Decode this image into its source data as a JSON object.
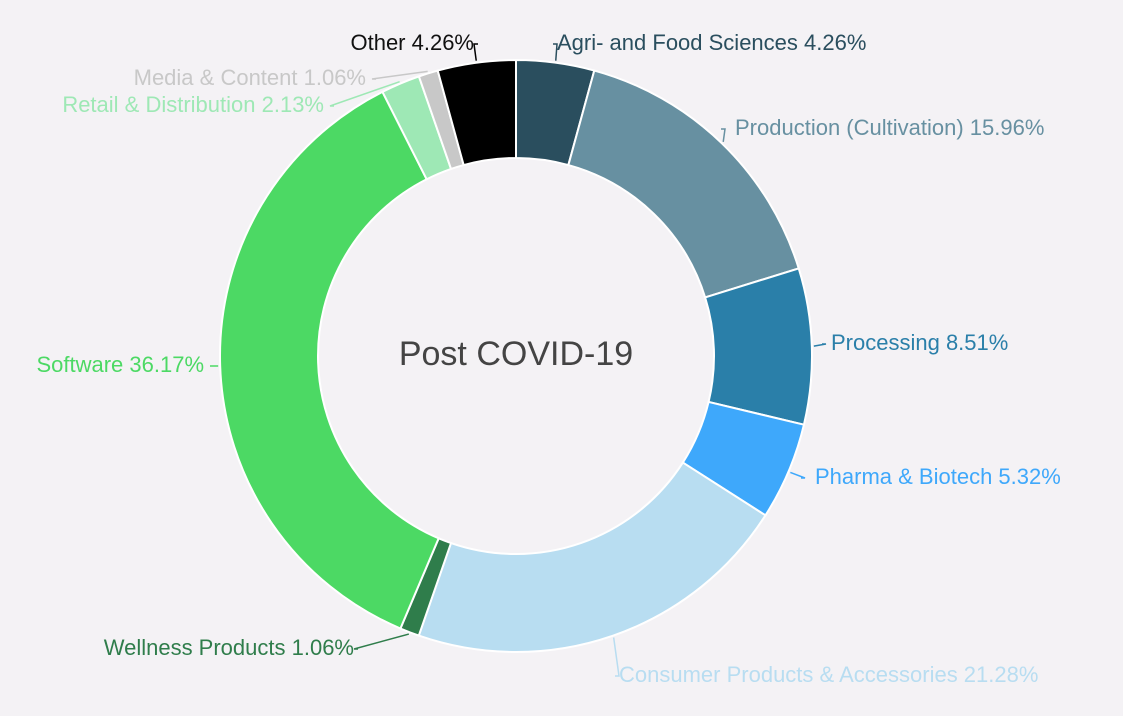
{
  "chart_data": {
    "type": "pie",
    "variant": "donut",
    "center_label": "Post COVID-19",
    "slices": [
      {
        "name": "Agri- and Food Sciences",
        "value": 4.26,
        "label": "Agri- and Food Sciences 4.26%",
        "color": "#2a4e5e",
        "text_color": "#2a4e5e"
      },
      {
        "name": "Production (Cultivation)",
        "value": 15.96,
        "label": "Production (Cultivation) 15.96%",
        "color": "#6790a1",
        "text_color": "#6790a1"
      },
      {
        "name": "Processing",
        "value": 8.51,
        "label": "Processing 8.51%",
        "color": "#2a7fa9",
        "text_color": "#2a7fa9"
      },
      {
        "name": "Pharma & Biotech",
        "value": 5.32,
        "label": "Pharma & Biotech 5.32%",
        "color": "#3ea8fb",
        "text_color": "#3ea8fb"
      },
      {
        "name": "Consumer Products & Accessories",
        "value": 21.28,
        "label": "Consumer Products & Accessories 21.28%",
        "color": "#b8ddf1",
        "text_color": "#b8ddf1"
      },
      {
        "name": "Wellness Products",
        "value": 1.06,
        "label": "Wellness Products 1.06%",
        "color": "#2f7d4b",
        "text_color": "#2f7d4b"
      },
      {
        "name": "Software",
        "value": 36.17,
        "label": "Software 36.17%",
        "color": "#4cd964",
        "text_color": "#4cd964"
      },
      {
        "name": "Retail & Distribution",
        "value": 2.13,
        "label": "Retail & Distribution 2.13%",
        "color": "#9ee8b5",
        "text_color": "#9ee8b5"
      },
      {
        "name": "Media & Content",
        "value": 1.06,
        "label": "Media & Content 1.06%",
        "color": "#c8c8c8",
        "text_color": "#c8c8c8"
      },
      {
        "name": "Other",
        "value": 4.26,
        "label": "Other 4.26%",
        "color": "#000000",
        "text_color": "#111111"
      }
    ]
  }
}
